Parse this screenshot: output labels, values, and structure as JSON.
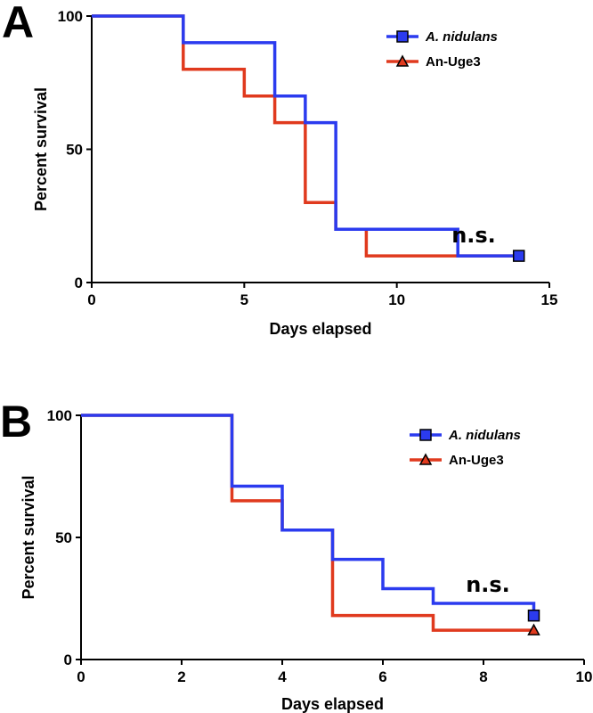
{
  "chart_data": [
    {
      "type": "line",
      "step": true,
      "panel_label": "A",
      "xlabel": "Days elapsed",
      "ylabel": "Percent survival",
      "xlim": [
        0,
        15
      ],
      "ylim": [
        0,
        100
      ],
      "xticks": [
        0,
        5,
        10,
        15
      ],
      "yticks": [
        0,
        50,
        100
      ],
      "legend_position": "top-right",
      "annotation": "n.s.",
      "series": [
        {
          "name": "A. nidulans",
          "italic": true,
          "color": "#2b3bef",
          "marker": "square",
          "x": [
            0,
            3,
            6,
            7,
            8,
            12,
            14
          ],
          "y": [
            100,
            90,
            70,
            60,
            20,
            10,
            10
          ],
          "end_marker": [
            14,
            10
          ]
        },
        {
          "name": "An-Uge3",
          "italic": false,
          "color": "#e03a1e",
          "marker": "triangle",
          "x": [
            0,
            3,
            5,
            6,
            7,
            8,
            9,
            14
          ],
          "y": [
            100,
            80,
            70,
            60,
            30,
            20,
            10,
            10
          ],
          "end_marker": null
        }
      ]
    },
    {
      "type": "line",
      "step": true,
      "panel_label": "B",
      "xlabel": "Days elapsed",
      "ylabel": "Percent survival",
      "xlim": [
        0,
        10
      ],
      "ylim": [
        0,
        100
      ],
      "xticks": [
        0,
        2,
        4,
        6,
        8,
        10
      ],
      "yticks": [
        0,
        50,
        100
      ],
      "legend_position": "top-right",
      "annotation": "n.s.",
      "series": [
        {
          "name": "A. nidulans",
          "italic": true,
          "color": "#2b3bef",
          "marker": "square",
          "x": [
            0,
            3,
            4,
            5,
            6,
            7,
            9
          ],
          "y": [
            100,
            71,
            53,
            41,
            29,
            23,
            18
          ],
          "end_marker": [
            9,
            18
          ]
        },
        {
          "name": "An-Uge3",
          "italic": false,
          "color": "#e03a1e",
          "marker": "triangle",
          "x": [
            0,
            3,
            4,
            5,
            7,
            9
          ],
          "y": [
            100,
            65,
            53,
            18,
            12,
            12
          ],
          "end_marker": [
            9,
            12
          ]
        }
      ]
    }
  ]
}
